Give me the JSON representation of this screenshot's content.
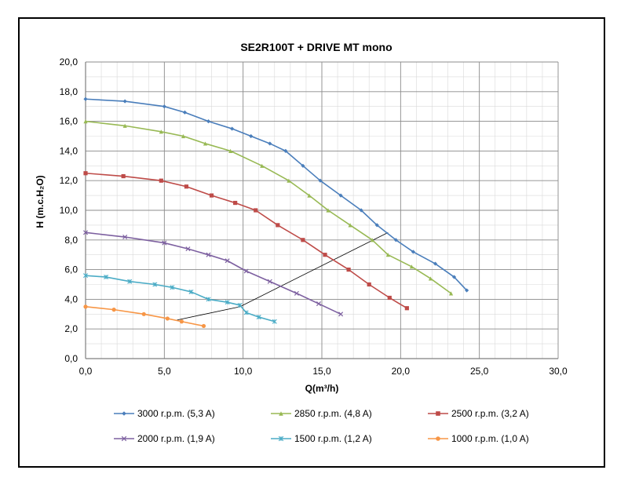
{
  "chart_data": {
    "type": "line",
    "title": "SE2R100T + DRIVE MT mono",
    "xlabel": "Q(m³/h)",
    "ylabel": "H (m.c.H₂O)",
    "xlim": [
      0,
      30
    ],
    "ylim": [
      0,
      20
    ],
    "xticks": [
      "0,0",
      "5,0",
      "10,0",
      "15,0",
      "20,0",
      "25,0",
      "30,0"
    ],
    "yticks": [
      "0,0",
      "2,0",
      "4,0",
      "6,0",
      "8,0",
      "10,0",
      "12,0",
      "14,0",
      "16,0",
      "18,0",
      "20,0"
    ],
    "grid": true,
    "legend_position": "bottom",
    "series": [
      {
        "name": "3000 r.p.m. (5,3 A)",
        "color": "#4a7ebb",
        "marker": "diamond",
        "x": [
          0,
          2.5,
          5.0,
          6.3,
          7.8,
          9.3,
          10.5,
          11.7,
          12.7,
          13.8,
          14.9,
          16.2,
          17.5,
          18.5,
          19.7,
          20.8,
          22.2,
          23.4,
          24.2
        ],
        "y": [
          17.5,
          17.35,
          17.0,
          16.6,
          16.0,
          15.5,
          15.0,
          14.5,
          14.0,
          13.0,
          12.0,
          11.0,
          10.0,
          9.0,
          8.0,
          7.2,
          6.4,
          5.5,
          4.6
        ]
      },
      {
        "name": "2850 r.p.m. (4,8 A)",
        "color": "#98b954",
        "marker": "triangle",
        "x": [
          0,
          2.5,
          4.8,
          6.2,
          7.6,
          9.2,
          11.2,
          12.9,
          14.2,
          15.4,
          16.8,
          18.2,
          19.2,
          20.7,
          21.9,
          23.2
        ],
        "y": [
          16.0,
          15.7,
          15.3,
          15.0,
          14.5,
          14.0,
          13.0,
          12.0,
          11.0,
          10.0,
          9.0,
          8.0,
          7.0,
          6.2,
          5.4,
          4.4
        ]
      },
      {
        "name": "2500 r.p.m. (3,2 A)",
        "color": "#be4b48",
        "marker": "square",
        "x": [
          0,
          2.4,
          4.8,
          6.4,
          8.0,
          9.5,
          10.8,
          12.2,
          13.8,
          15.2,
          16.7,
          18.0,
          19.3,
          20.4
        ],
        "y": [
          12.5,
          12.3,
          12.0,
          11.6,
          11.0,
          10.5,
          10.0,
          9.0,
          8.0,
          7.0,
          6.0,
          5.0,
          4.1,
          3.4
        ]
      },
      {
        "name": "2000 r.p.m. (1,9 A)",
        "color": "#7d60a0",
        "marker": "cross",
        "x": [
          0,
          2.5,
          5.0,
          6.5,
          7.8,
          9.0,
          10.2,
          11.7,
          13.4,
          14.8,
          16.2
        ],
        "y": [
          8.5,
          8.2,
          7.8,
          7.4,
          7.0,
          6.6,
          5.9,
          5.2,
          4.4,
          3.7,
          3.0
        ]
      },
      {
        "name": "1500 r.p.m. (1,2 A)",
        "color": "#4bacc6",
        "marker": "star",
        "x": [
          0,
          1.3,
          2.8,
          4.4,
          5.5,
          6.7,
          7.8,
          9.0,
          9.8,
          10.2,
          11.0,
          12.0
        ],
        "y": [
          5.6,
          5.5,
          5.2,
          5.0,
          4.8,
          4.5,
          4.0,
          3.8,
          3.6,
          3.1,
          2.8,
          2.5
        ]
      },
      {
        "name": "1000 r.p.m. (1,0 A)",
        "color": "#f79646",
        "marker": "circle",
        "x": [
          0,
          1.8,
          3.7,
          5.2,
          6.1,
          7.5
        ],
        "y": [
          3.5,
          3.3,
          3.0,
          2.7,
          2.5,
          2.2
        ]
      }
    ],
    "annotation_line": {
      "color": "#000000",
      "x": [
        5.8,
        9.8,
        19.2
      ],
      "y": [
        2.6,
        3.5,
        8.5
      ]
    }
  }
}
